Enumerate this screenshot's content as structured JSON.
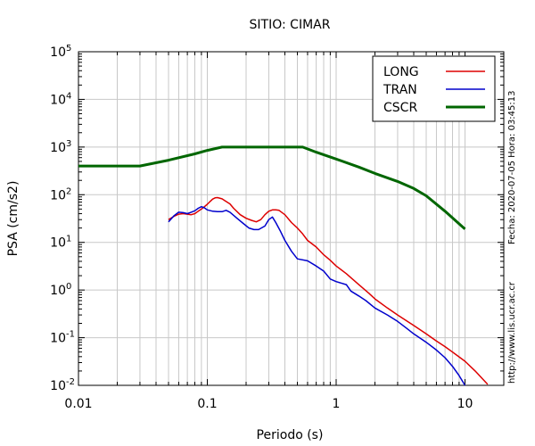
{
  "chart_data": {
    "type": "line",
    "title": "SITIO: CIMAR",
    "xlabel": "Periodo (s)",
    "ylabel": "PSA (cm/s2)",
    "x_scale": "log",
    "y_scale": "log",
    "xlim": [
      0.01,
      20
    ],
    "ylim": [
      0.01,
      100000
    ],
    "grid": true,
    "legend_position": "top-right",
    "x_ticks": [
      {
        "value": 0.01,
        "label": "0.01"
      },
      {
        "value": 0.1,
        "label": "0.1"
      },
      {
        "value": 1,
        "label": "1"
      },
      {
        "value": 10,
        "label": "10"
      }
    ],
    "y_ticks": [
      {
        "value": 0.01,
        "base": "10",
        "exp": "-2"
      },
      {
        "value": 0.1,
        "base": "10",
        "exp": "-1"
      },
      {
        "value": 1,
        "base": "10",
        "exp": "0"
      },
      {
        "value": 10,
        "base": "10",
        "exp": "1"
      },
      {
        "value": 100,
        "base": "10",
        "exp": "2"
      },
      {
        "value": 1000,
        "base": "10",
        "exp": "3"
      },
      {
        "value": 10000,
        "base": "10",
        "exp": "4"
      },
      {
        "value": 100000,
        "base": "10",
        "exp": "5"
      }
    ],
    "series": [
      {
        "name": "LONG",
        "color": "#dd0000",
        "width": 1.5,
        "points": [
          [
            0.05,
            30
          ],
          [
            0.055,
            35
          ],
          [
            0.06,
            39
          ],
          [
            0.065,
            40
          ],
          [
            0.07,
            39
          ],
          [
            0.075,
            38
          ],
          [
            0.08,
            40
          ],
          [
            0.085,
            45
          ],
          [
            0.09,
            50
          ],
          [
            0.095,
            56
          ],
          [
            0.1,
            63
          ],
          [
            0.105,
            72
          ],
          [
            0.11,
            81
          ],
          [
            0.115,
            86
          ],
          [
            0.12,
            87
          ],
          [
            0.13,
            82
          ],
          [
            0.14,
            72
          ],
          [
            0.15,
            64
          ],
          [
            0.16,
            52
          ],
          [
            0.18,
            38
          ],
          [
            0.2,
            32
          ],
          [
            0.22,
            29
          ],
          [
            0.24,
            27
          ],
          [
            0.26,
            30
          ],
          [
            0.28,
            38
          ],
          [
            0.3,
            45
          ],
          [
            0.32,
            48
          ],
          [
            0.34,
            48
          ],
          [
            0.36,
            47
          ],
          [
            0.4,
            38
          ],
          [
            0.45,
            26
          ],
          [
            0.5,
            20
          ],
          [
            0.55,
            15
          ],
          [
            0.6,
            11
          ],
          [
            0.7,
            8
          ],
          [
            0.8,
            5.5
          ],
          [
            0.9,
            4.2
          ],
          [
            1.0,
            3.2
          ],
          [
            1.2,
            2.2
          ],
          [
            1.5,
            1.3
          ],
          [
            1.8,
            0.85
          ],
          [
            2.0,
            0.65
          ],
          [
            2.5,
            0.42
          ],
          [
            3.0,
            0.3
          ],
          [
            4.0,
            0.18
          ],
          [
            5.0,
            0.12
          ],
          [
            6.0,
            0.085
          ],
          [
            7.0,
            0.065
          ],
          [
            8.0,
            0.05
          ],
          [
            10.0,
            0.032
          ],
          [
            12.0,
            0.02
          ],
          [
            15.0,
            0.0105
          ]
        ]
      },
      {
        "name": "TRAN",
        "color": "#0000cc",
        "width": 1.5,
        "points": [
          [
            0.05,
            27
          ],
          [
            0.055,
            36
          ],
          [
            0.06,
            43
          ],
          [
            0.065,
            42
          ],
          [
            0.07,
            40
          ],
          [
            0.075,
            43
          ],
          [
            0.08,
            46
          ],
          [
            0.085,
            52
          ],
          [
            0.09,
            56
          ],
          [
            0.095,
            53
          ],
          [
            0.1,
            48
          ],
          [
            0.11,
            45
          ],
          [
            0.12,
            44
          ],
          [
            0.13,
            44
          ],
          [
            0.14,
            47
          ],
          [
            0.15,
            43
          ],
          [
            0.17,
            32
          ],
          [
            0.19,
            25
          ],
          [
            0.21,
            20
          ],
          [
            0.23,
            18.5
          ],
          [
            0.25,
            18.5
          ],
          [
            0.28,
            22
          ],
          [
            0.3,
            30
          ],
          [
            0.32,
            34
          ],
          [
            0.34,
            26
          ],
          [
            0.37,
            17
          ],
          [
            0.4,
            11
          ],
          [
            0.45,
            6.5
          ],
          [
            0.5,
            4.5
          ],
          [
            0.6,
            4.1
          ],
          [
            0.7,
            3.2
          ],
          [
            0.8,
            2.5
          ],
          [
            0.9,
            1.7
          ],
          [
            1.0,
            1.5
          ],
          [
            1.2,
            1.3
          ],
          [
            1.3,
            0.95
          ],
          [
            1.5,
            0.75
          ],
          [
            1.7,
            0.6
          ],
          [
            2.0,
            0.42
          ],
          [
            2.5,
            0.3
          ],
          [
            3.0,
            0.22
          ],
          [
            3.5,
            0.16
          ],
          [
            4.0,
            0.12
          ],
          [
            5.0,
            0.08
          ],
          [
            6.0,
            0.055
          ],
          [
            7.0,
            0.038
          ],
          [
            8.0,
            0.025
          ],
          [
            9.0,
            0.016
          ],
          [
            10.0,
            0.01
          ]
        ]
      },
      {
        "name": "CSCR",
        "color": "#006600",
        "width": 3,
        "points": [
          [
            0.01,
            400
          ],
          [
            0.03,
            400
          ],
          [
            0.05,
            530
          ],
          [
            0.08,
            720
          ],
          [
            0.1,
            850
          ],
          [
            0.13,
            1000
          ],
          [
            0.55,
            1000
          ],
          [
            0.7,
            780
          ],
          [
            1.0,
            560
          ],
          [
            1.5,
            380
          ],
          [
            2.0,
            280
          ],
          [
            3.0,
            190
          ],
          [
            4.0,
            135
          ],
          [
            5.0,
            95
          ],
          [
            7.0,
            45
          ],
          [
            10.0,
            19
          ]
        ]
      }
    ]
  },
  "side_text": {
    "date": "Fecha: 2020-07-05  Hora: 03:45:13",
    "url": "http://www.lis.ucr.ac.cr"
  }
}
